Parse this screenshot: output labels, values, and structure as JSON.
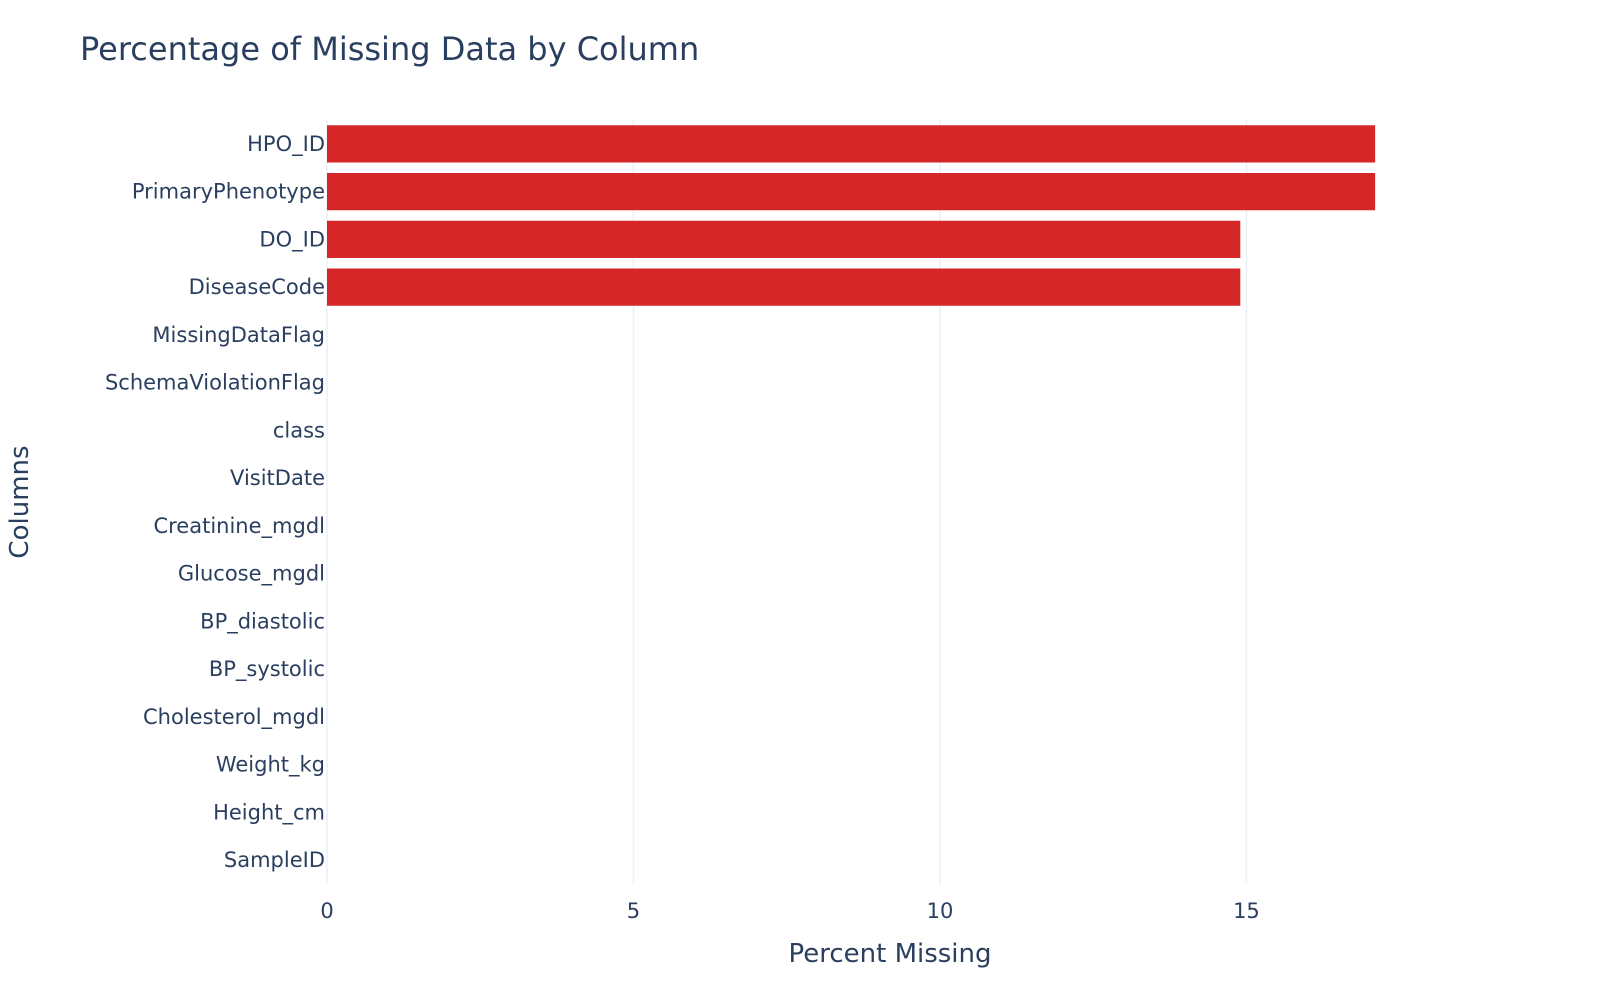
{
  "chart_data": {
    "type": "bar",
    "orientation": "horizontal",
    "title": "Percentage of Missing Data by Column",
    "xlabel": "Percent Missing",
    "ylabel": "Columns",
    "xlim": [
      0,
      19.3
    ],
    "xticks": [
      0,
      5,
      10,
      15
    ],
    "grid": true,
    "bar_color": "#d62728",
    "categories": [
      "HPO_ID",
      "PrimaryPhenotype",
      "DO_ID",
      "DiseaseCode",
      "MissingDataFlag",
      "SchemaViolationFlag",
      "class",
      "VisitDate",
      "Creatinine_mgdl",
      "Glucose_mgdl",
      "BP_diastolic",
      "BP_systolic",
      "Cholesterol_mgdl",
      "Weight_kg",
      "Height_cm",
      "SampleID"
    ],
    "values": [
      17.1,
      17.1,
      14.9,
      14.9,
      0,
      0,
      0,
      0,
      0,
      0,
      0,
      0,
      0,
      0,
      0,
      0
    ]
  }
}
